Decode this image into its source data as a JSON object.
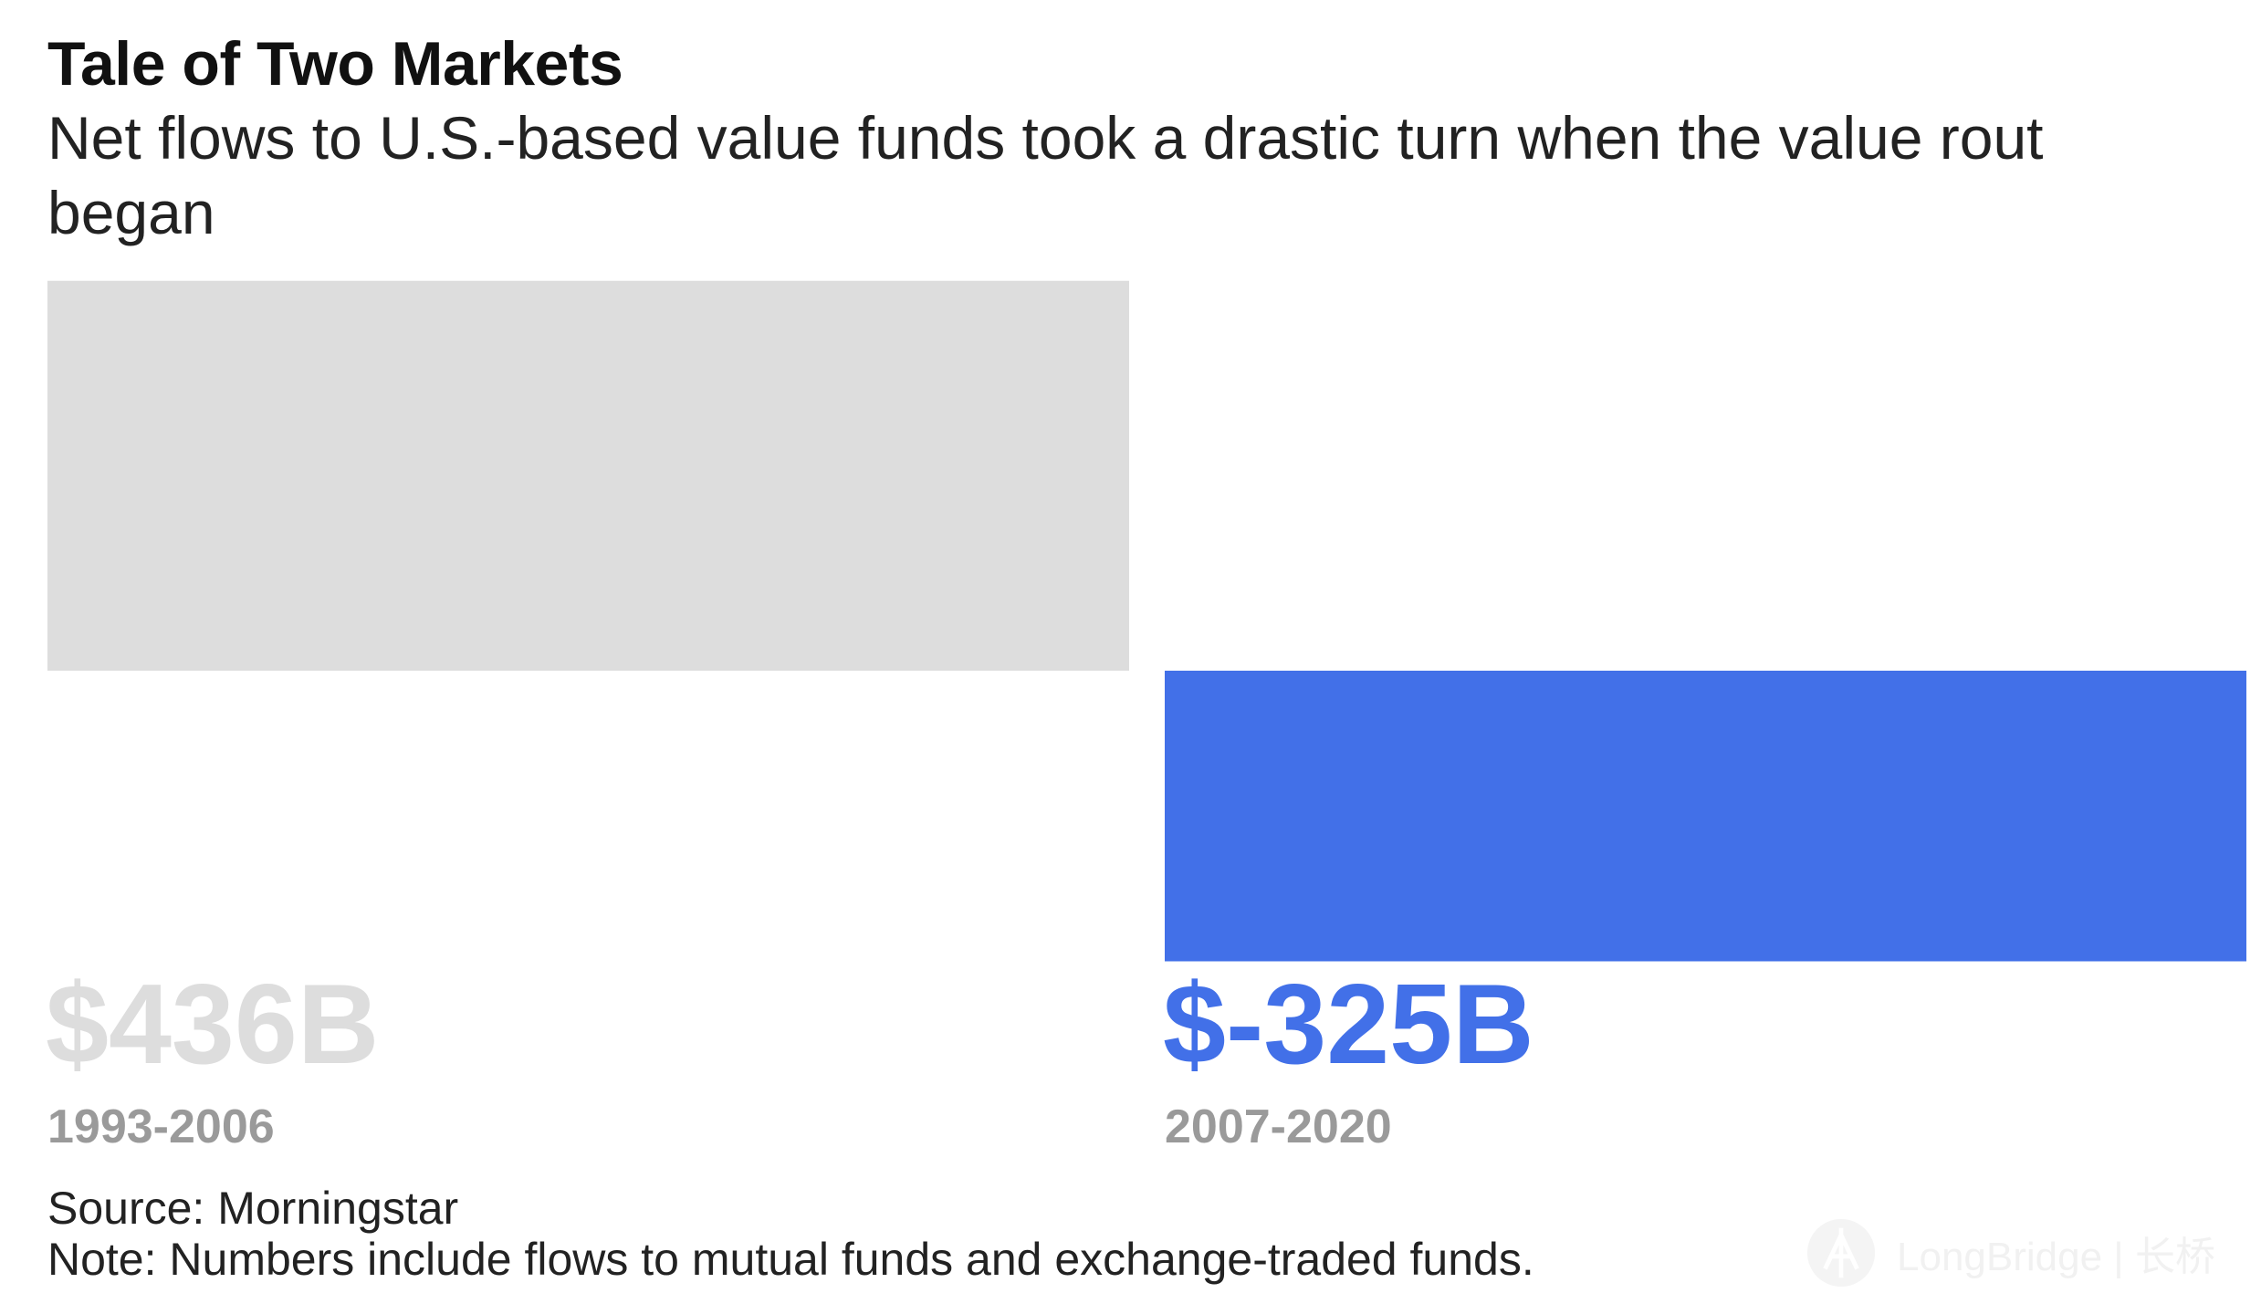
{
  "title": "Tale of Two Markets",
  "subtitle": "Net flows to U.S.-based value funds took a drastic turn when the value rout began",
  "chart_data": {
    "type": "bar",
    "title": "Tale of Two Markets",
    "subtitle": "Net flows to U.S.-based value funds took a drastic turn when the value rout began",
    "categories": [
      "1993-2006",
      "2007-2020"
    ],
    "values": [
      436,
      -325
    ],
    "value_labels": [
      "$436B",
      "$-325B"
    ],
    "units": "billion USD",
    "colors": [
      "#dddddd",
      "#4270e8"
    ],
    "xlabel": "",
    "ylabel": "",
    "grid": false,
    "legend": "none"
  },
  "footer": {
    "source": "Source: Morningstar",
    "note": "Note: Numbers include flows to mutual funds and exchange-traded funds."
  },
  "watermark": {
    "text": "LongBridge | 长桥",
    "icon": "longbridge-logo-icon"
  }
}
